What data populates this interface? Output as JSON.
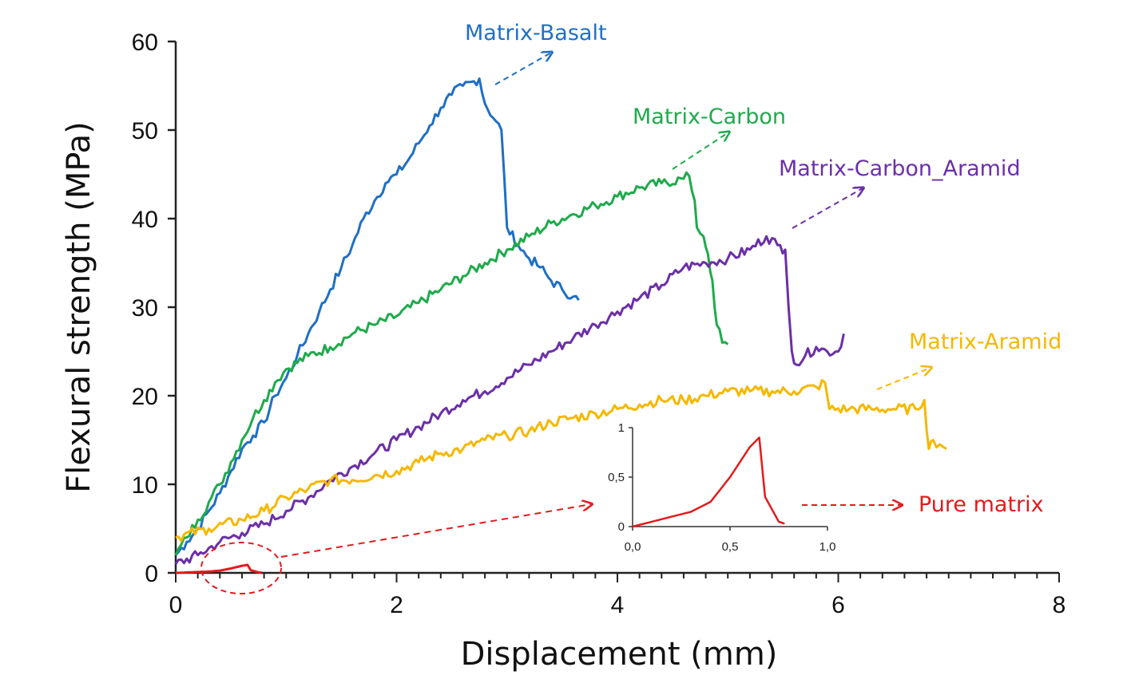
{
  "chart_data": {
    "type": "line",
    "xlabel": "Displacement (mm)",
    "ylabel": "Flexural strength (MPa)",
    "xlim": [
      0,
      8
    ],
    "ylim": [
      0,
      60
    ],
    "x_ticks": [
      "0",
      "2",
      "4",
      "6",
      "8"
    ],
    "y_ticks": [
      "0",
      "10",
      "20",
      "30",
      "40",
      "50",
      "60"
    ],
    "grid": false,
    "legend": "inline labels with dashed arrows",
    "series": [
      {
        "name": "Matrix-Basalt",
        "color": "#1F6FC5",
        "points": [
          [
            0,
            2
          ],
          [
            0.1,
            3.5
          ],
          [
            0.2,
            5
          ],
          [
            0.3,
            7
          ],
          [
            0.4,
            9
          ],
          [
            0.5,
            11.5
          ],
          [
            0.6,
            14
          ],
          [
            0.7,
            15.5
          ],
          [
            0.8,
            17
          ],
          [
            0.9,
            20
          ],
          [
            1.0,
            22
          ],
          [
            1.1,
            24.5
          ],
          [
            1.2,
            27
          ],
          [
            1.3,
            29.5
          ],
          [
            1.4,
            32
          ],
          [
            1.5,
            34.5
          ],
          [
            1.6,
            37
          ],
          [
            1.7,
            40
          ],
          [
            1.8,
            42
          ],
          [
            1.9,
            44
          ],
          [
            2.0,
            45
          ],
          [
            2.1,
            46.5
          ],
          [
            2.2,
            48.5
          ],
          [
            2.3,
            50.5
          ],
          [
            2.4,
            52.5
          ],
          [
            2.5,
            54
          ],
          [
            2.6,
            55
          ],
          [
            2.7,
            55.5
          ],
          [
            2.75,
            55.8
          ],
          [
            2.8,
            53
          ],
          [
            2.9,
            51
          ],
          [
            2.95,
            50
          ],
          [
            3.0,
            39
          ],
          [
            3.1,
            37
          ],
          [
            3.2,
            35.5
          ],
          [
            3.3,
            34.5
          ],
          [
            3.4,
            33
          ],
          [
            3.5,
            32
          ],
          [
            3.6,
            31.2
          ],
          [
            3.65,
            30.8
          ]
        ]
      },
      {
        "name": "Matrix-Carbon",
        "color": "#1FAA4B",
        "points": [
          [
            0,
            2
          ],
          [
            0.1,
            4
          ],
          [
            0.2,
            6
          ],
          [
            0.3,
            8
          ],
          [
            0.4,
            10
          ],
          [
            0.5,
            12.5
          ],
          [
            0.6,
            15
          ],
          [
            0.7,
            17.5
          ],
          [
            0.8,
            19.5
          ],
          [
            0.9,
            21.5
          ],
          [
            1.0,
            23
          ],
          [
            1.2,
            24.5
          ],
          [
            1.4,
            25.5
          ],
          [
            1.6,
            27
          ],
          [
            1.8,
            28
          ],
          [
            2.0,
            29
          ],
          [
            2.2,
            30.5
          ],
          [
            2.4,
            32
          ],
          [
            2.6,
            33.5
          ],
          [
            2.8,
            35
          ],
          [
            3.0,
            36.5
          ],
          [
            3.2,
            38
          ],
          [
            3.4,
            39.5
          ],
          [
            3.6,
            40.5
          ],
          [
            3.8,
            41.5
          ],
          [
            4.0,
            42.5
          ],
          [
            4.2,
            43.5
          ],
          [
            4.4,
            44
          ],
          [
            4.6,
            44.5
          ],
          [
            4.65,
            44.8
          ],
          [
            4.7,
            42
          ],
          [
            4.72,
            39
          ],
          [
            4.78,
            38
          ],
          [
            4.82,
            36
          ],
          [
            4.86,
            33
          ],
          [
            4.88,
            30
          ],
          [
            4.9,
            28
          ],
          [
            4.95,
            26
          ],
          [
            5.0,
            25.8
          ]
        ]
      },
      {
        "name": "Matrix-Carbon_Aramid",
        "color": "#6B2FA8",
        "points": [
          [
            0,
            1
          ],
          [
            0.2,
            2
          ],
          [
            0.4,
            3.5
          ],
          [
            0.6,
            4.5
          ],
          [
            0.8,
            5.5
          ],
          [
            1.0,
            7
          ],
          [
            1.2,
            8.5
          ],
          [
            1.4,
            10.5
          ],
          [
            1.6,
            12
          ],
          [
            1.8,
            13.5
          ],
          [
            2.0,
            15
          ],
          [
            2.2,
            16.5
          ],
          [
            2.4,
            18
          ],
          [
            2.6,
            19.5
          ],
          [
            2.8,
            20.5
          ],
          [
            3.0,
            22
          ],
          [
            3.2,
            23.5
          ],
          [
            3.4,
            25
          ],
          [
            3.6,
            26.5
          ],
          [
            3.8,
            28
          ],
          [
            4.0,
            29.5
          ],
          [
            4.2,
            31
          ],
          [
            4.4,
            32.5
          ],
          [
            4.6,
            34.5
          ],
          [
            4.8,
            35
          ],
          [
            5.0,
            35.5
          ],
          [
            5.2,
            36.5
          ],
          [
            5.35,
            38
          ],
          [
            5.45,
            37
          ],
          [
            5.52,
            36.5
          ],
          [
            5.55,
            30
          ],
          [
            5.58,
            25
          ],
          [
            5.62,
            23.5
          ],
          [
            5.7,
            24.5
          ],
          [
            5.8,
            25.5
          ],
          [
            5.9,
            25
          ],
          [
            6.0,
            25
          ],
          [
            6.05,
            27
          ]
        ]
      },
      {
        "name": "Matrix-Aramid",
        "color": "#F5B800",
        "points": [
          [
            0,
            4
          ],
          [
            0.3,
            5
          ],
          [
            0.6,
            6
          ],
          [
            0.8,
            7
          ],
          [
            1.0,
            8.5
          ],
          [
            1.2,
            9.5
          ],
          [
            1.4,
            10.5
          ],
          [
            1.6,
            10.5
          ],
          [
            1.8,
            11
          ],
          [
            2.0,
            11.5
          ],
          [
            2.2,
            12.5
          ],
          [
            2.4,
            13.5
          ],
          [
            2.6,
            14
          ],
          [
            2.8,
            15
          ],
          [
            3.0,
            15.5
          ],
          [
            3.2,
            16
          ],
          [
            3.4,
            17
          ],
          [
            3.6,
            17.5
          ],
          [
            3.8,
            18
          ],
          [
            4.0,
            18.5
          ],
          [
            4.2,
            19
          ],
          [
            4.4,
            19.5
          ],
          [
            4.6,
            19.5
          ],
          [
            4.8,
            20
          ],
          [
            5.0,
            20.5
          ],
          [
            5.2,
            20.5
          ],
          [
            5.4,
            20.5
          ],
          [
            5.6,
            20.5
          ],
          [
            5.8,
            21
          ],
          [
            5.88,
            21.5
          ],
          [
            5.92,
            18.5
          ],
          [
            6.1,
            18.5
          ],
          [
            6.3,
            18.5
          ],
          [
            6.5,
            18.5
          ],
          [
            6.7,
            18.5
          ],
          [
            6.78,
            19.5
          ],
          [
            6.82,
            14
          ],
          [
            6.86,
            15
          ],
          [
            6.92,
            14.5
          ],
          [
            6.98,
            14
          ]
        ]
      },
      {
        "name": "Pure matrix",
        "color": "#E41A1C",
        "points": [
          [
            0,
            0
          ],
          [
            0.1,
            0.05
          ],
          [
            0.2,
            0.1
          ],
          [
            0.3,
            0.15
          ],
          [
            0.4,
            0.25
          ],
          [
            0.5,
            0.5
          ],
          [
            0.6,
            0.8
          ],
          [
            0.65,
            0.9
          ],
          [
            0.68,
            0.3
          ],
          [
            0.75,
            0.05
          ],
          [
            0.78,
            0.03
          ]
        ]
      }
    ],
    "inset": {
      "series": "Pure matrix",
      "xlim": [
        0,
        1
      ],
      "ylim": [
        0,
        1
      ],
      "x_ticks": [
        "0,0",
        "0,5",
        "1,0"
      ],
      "y_ticks": [
        "0",
        "0,5",
        "1"
      ]
    }
  }
}
